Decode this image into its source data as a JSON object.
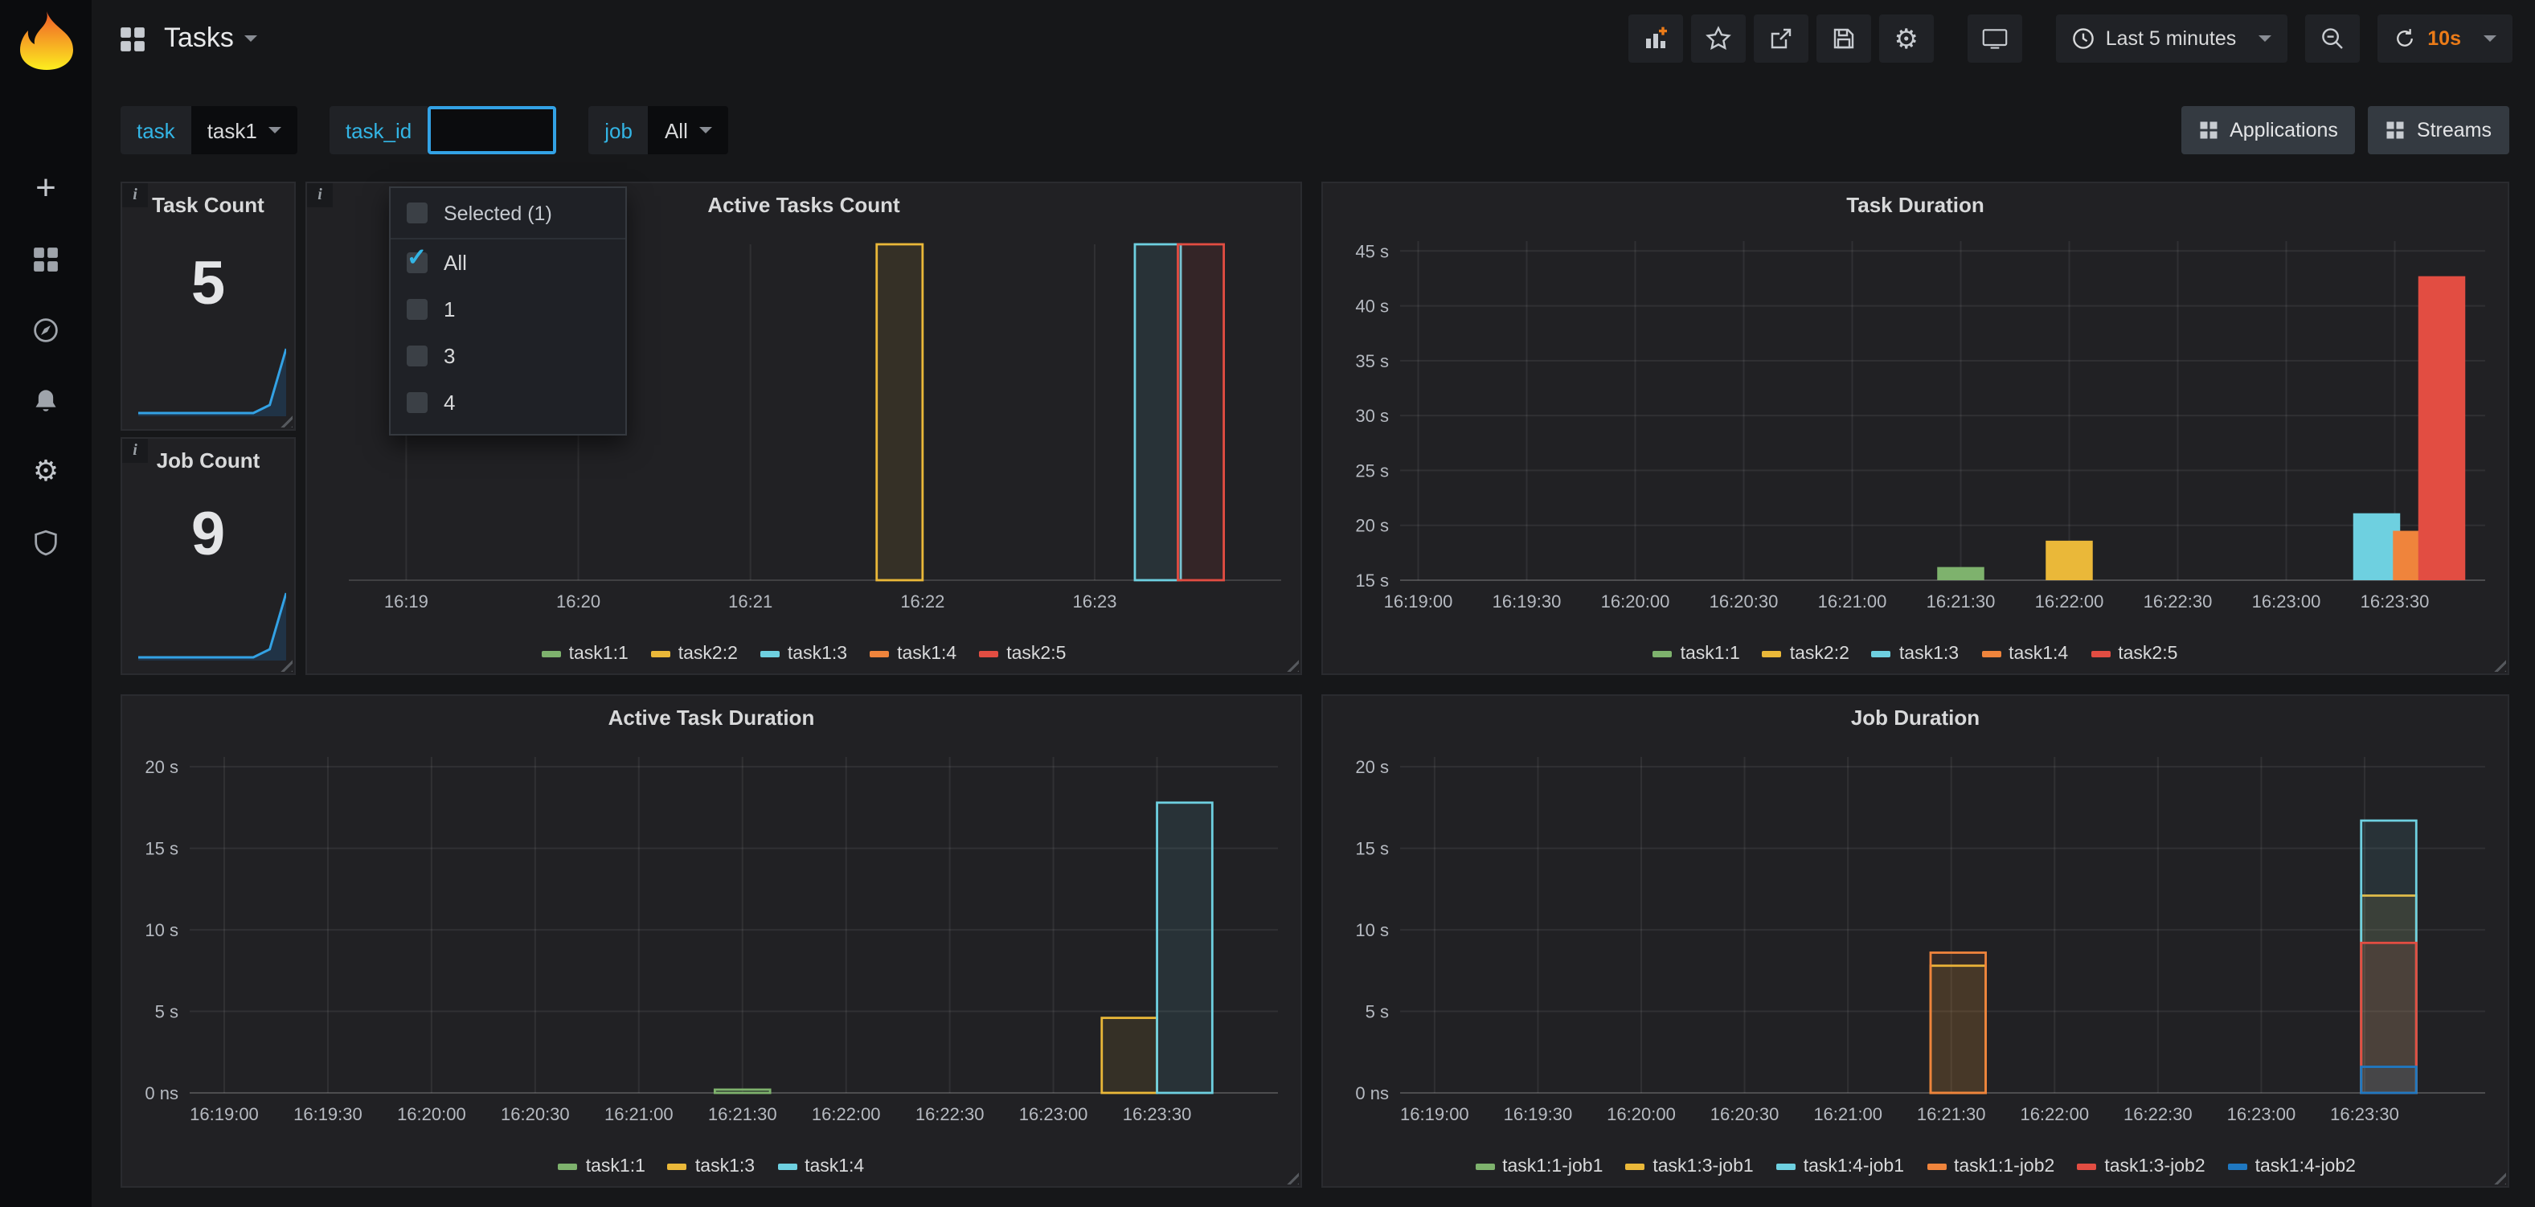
{
  "icons": {
    "check": "✓",
    "gear": "⚙",
    "plus": "+",
    "info": "i"
  },
  "colors": {
    "accent_blue": "#33b5e5",
    "refresh_orange": "#eb7b18",
    "logo_orange": "#f05a28",
    "sparkline_blue": "#1f78c1",
    "panel_bg": "#212124",
    "page_bg": "#161719"
  },
  "navbar": {
    "title": "Tasks",
    "time_range": "Last 5 minutes",
    "refresh_interval": "10s"
  },
  "filters": {
    "task_label": "task",
    "task_value": "task1",
    "task_id_label": "task_id",
    "task_id_value": "",
    "job_label": "job",
    "job_value": "All",
    "links": [
      {
        "label": "Applications"
      },
      {
        "label": "Streams"
      }
    ]
  },
  "dropdown": {
    "header": "Selected (1)",
    "options": [
      {
        "label": "All",
        "checked": true
      },
      {
        "label": "1",
        "checked": false
      },
      {
        "label": "3",
        "checked": false
      },
      {
        "label": "4",
        "checked": false
      }
    ]
  },
  "panels": {
    "task_count": {
      "title": "Task Count",
      "value": "5",
      "sparkline": [
        1,
        1,
        1,
        1,
        1,
        1,
        1,
        1,
        1.5,
        5
      ]
    },
    "job_count": {
      "title": "Job Count",
      "value": "9",
      "sparkline": [
        1,
        1,
        1,
        1,
        1,
        1,
        1,
        1,
        2,
        9
      ]
    },
    "active_tasks_count": {
      "title": "Active Tasks Count"
    },
    "task_duration": {
      "title": "Task Duration"
    },
    "active_task_duration": {
      "title": "Active Task Duration"
    },
    "job_duration": {
      "title": "Job Duration"
    }
  },
  "chart_data": [
    {
      "id": "active_tasks_count",
      "type": "bar",
      "title": "Active Tasks Count",
      "x_start": "16:18:40",
      "x_end": "16:24:05",
      "x_ticks": [
        "16:19",
        "16:20",
        "16:21",
        "16:22",
        "16:23"
      ],
      "ylim": [
        0,
        1
      ],
      "y_base": 0,
      "y_ticks": [],
      "bar_width_s": 16,
      "bar_style": "outline",
      "grid": true,
      "legend_position": "bottom",
      "margins": {
        "l": 24,
        "t": 10,
        "r": 10,
        "b": 30
      },
      "series": [
        {
          "name": "task1:1",
          "color": "#7EB26D",
          "points": []
        },
        {
          "name": "task2:2",
          "color": "#EAB839",
          "points": [
            {
              "t": "16:21:52",
              "v": 1
            }
          ]
        },
        {
          "name": "task1:3",
          "color": "#6ED0E0",
          "points": [
            {
              "t": "16:23:22",
              "v": 1
            }
          ]
        },
        {
          "name": "task1:4",
          "color": "#EF843C",
          "points": []
        },
        {
          "name": "task2:5",
          "color": "#E24D42",
          "points": [
            {
              "t": "16:23:37",
              "v": 1
            }
          ]
        }
      ]
    },
    {
      "id": "task_duration",
      "type": "bar",
      "title": "Task Duration",
      "x_start": "16:18:55",
      "x_end": "16:23:55",
      "x_ticks": [
        "16:19:00",
        "16:19:30",
        "16:20:00",
        "16:20:30",
        "16:21:00",
        "16:21:30",
        "16:22:00",
        "16:22:30",
        "16:23:00",
        "16:23:30"
      ],
      "ylim": [
        15,
        45.9
      ],
      "y_base": 15,
      "y_ticks": [
        {
          "v": 15,
          "label": "15 s"
        },
        {
          "v": 20,
          "label": "20 s"
        },
        {
          "v": 25,
          "label": "25 s"
        },
        {
          "v": 30,
          "label": "30 s"
        },
        {
          "v": 35,
          "label": "35 s"
        },
        {
          "v": 40,
          "label": "40 s"
        },
        {
          "v": 45,
          "label": "45 s"
        }
      ],
      "bar_width_s": 13,
      "bar_style": "solid",
      "grid": true,
      "legend_position": "bottom",
      "margins": {
        "l": 46,
        "t": 8,
        "r": 12,
        "b": 30
      },
      "series": [
        {
          "name": "task1:1",
          "color": "#7EB26D",
          "points": [
            {
              "t": "16:21:30",
              "v": 16.2
            }
          ]
        },
        {
          "name": "task2:2",
          "color": "#EAB839",
          "points": [
            {
              "t": "16:22:00",
              "v": 18.6
            }
          ]
        },
        {
          "name": "task1:3",
          "color": "#6ED0E0",
          "points": [
            {
              "t": "16:23:25",
              "v": 21.1
            }
          ]
        },
        {
          "name": "task1:4",
          "color": "#EF843C",
          "points": [
            {
              "t": "16:23:36",
              "v": 19.5
            }
          ]
        },
        {
          "name": "task2:5",
          "color": "#E24D42",
          "points": [
            {
              "t": "16:23:43",
              "v": 42.7
            }
          ]
        }
      ]
    },
    {
      "id": "active_task_duration",
      "type": "bar",
      "title": "Active Task Duration",
      "x_start": "16:18:50",
      "x_end": "16:24:05",
      "x_ticks": [
        "16:19:00",
        "16:19:30",
        "16:20:00",
        "16:20:30",
        "16:21:00",
        "16:21:30",
        "16:22:00",
        "16:22:30",
        "16:23:00",
        "16:23:30"
      ],
      "ylim": [
        0,
        20.6
      ],
      "y_base": 0,
      "y_ticks": [
        {
          "v": 0,
          "label": "0 ns"
        },
        {
          "v": 5,
          "label": "5 s"
        },
        {
          "v": 10,
          "label": "10 s"
        },
        {
          "v": 15,
          "label": "15 s"
        },
        {
          "v": 20,
          "label": "20 s"
        }
      ],
      "bar_width_s": 16,
      "bar_style": "outline",
      "grid": true,
      "legend_position": "bottom",
      "margins": {
        "l": 40,
        "t": 10,
        "r": 12,
        "b": 30
      },
      "series": [
        {
          "name": "task1:1",
          "color": "#7EB26D",
          "points": [
            {
              "t": "16:21:30",
              "v": 0.2
            }
          ]
        },
        {
          "name": "task1:3",
          "color": "#EAB839",
          "points": [
            {
              "t": "16:23:22",
              "v": 4.6
            }
          ]
        },
        {
          "name": "task1:4",
          "color": "#6ED0E0",
          "points": [
            {
              "t": "16:23:38",
              "v": 17.8
            }
          ]
        }
      ]
    },
    {
      "id": "job_duration",
      "type": "bar",
      "title": "Job Duration",
      "x_start": "16:18:50",
      "x_end": "16:24:05",
      "x_ticks": [
        "16:19:00",
        "16:19:30",
        "16:20:00",
        "16:20:30",
        "16:21:00",
        "16:21:30",
        "16:22:00",
        "16:22:30",
        "16:23:00",
        "16:23:30"
      ],
      "ylim": [
        0,
        20.6
      ],
      "y_base": 0,
      "y_ticks": [
        {
          "v": 0,
          "label": "0 ns"
        },
        {
          "v": 5,
          "label": "5 s"
        },
        {
          "v": 10,
          "label": "10 s"
        },
        {
          "v": 15,
          "label": "15 s"
        },
        {
          "v": 20,
          "label": "20 s"
        }
      ],
      "bar_width_s": 16,
      "bar_style": "outline",
      "grid": true,
      "legend_position": "bottom",
      "margins": {
        "l": 46,
        "t": 10,
        "r": 12,
        "b": 30
      },
      "series": [
        {
          "name": "task1:1-job1",
          "color": "#7EB26D",
          "points": []
        },
        {
          "name": "task1:3-job1",
          "color": "#EAB839",
          "points": [
            {
              "t": "16:21:32",
              "v": 7.8
            },
            {
              "t": "16:23:37",
              "v": 12.1
            }
          ]
        },
        {
          "name": "task1:4-job1",
          "color": "#6ED0E0",
          "points": [
            {
              "t": "16:23:37",
              "v": 16.7
            }
          ]
        },
        {
          "name": "task1:1-job2",
          "color": "#EF843C",
          "points": [
            {
              "t": "16:21:32",
              "v": 8.6
            }
          ]
        },
        {
          "name": "task1:3-job2",
          "color": "#E24D42",
          "points": [
            {
              "t": "16:23:37",
              "v": 9.2
            }
          ]
        },
        {
          "name": "task1:4-job2",
          "color": "#1F78C1",
          "points": [
            {
              "t": "16:23:37",
              "v": 1.6
            }
          ]
        }
      ]
    }
  ]
}
